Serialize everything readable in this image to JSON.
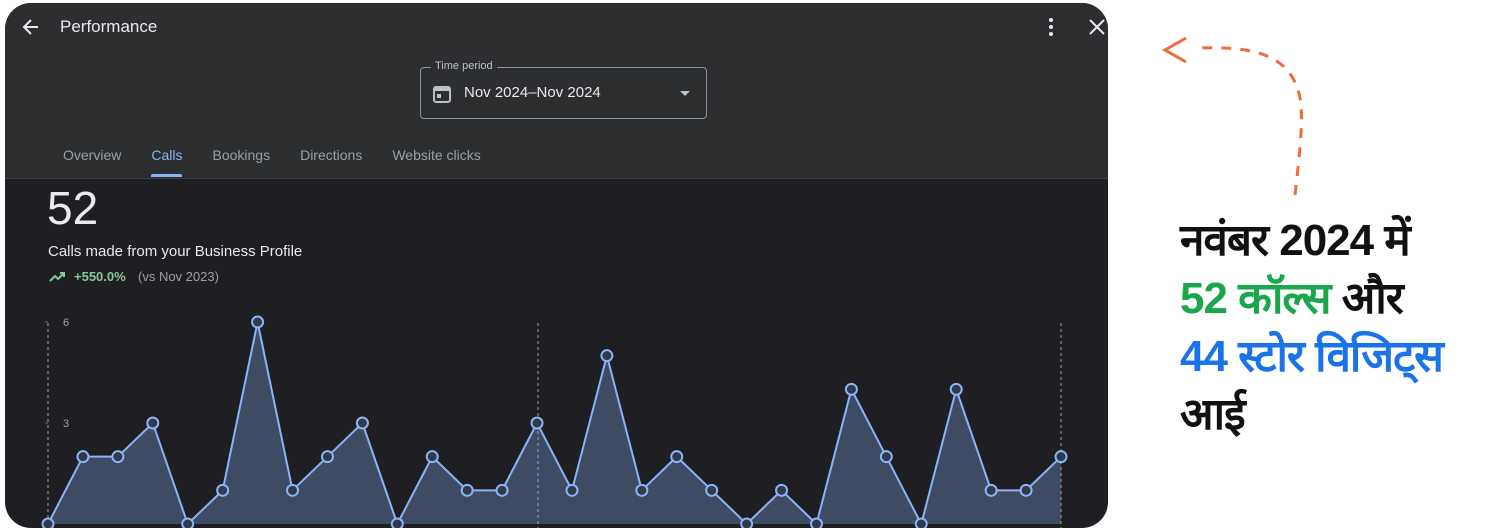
{
  "header": {
    "title": "Performance"
  },
  "time_period": {
    "label": "Time period",
    "value": "Nov 2024–Nov 2024"
  },
  "tabs": {
    "items": [
      "Overview",
      "Calls",
      "Bookings",
      "Directions",
      "Website clicks"
    ],
    "active": "Calls"
  },
  "summary": {
    "total": "52",
    "description": "Calls made from your Business Profile",
    "change": "+550.0%",
    "comparison": "(vs Nov 2023)"
  },
  "chart_data": {
    "type": "line",
    "values": [
      0,
      2,
      2,
      3,
      0,
      1,
      6,
      1,
      2,
      3,
      0,
      2,
      1,
      1,
      3,
      1,
      5,
      1,
      2,
      1,
      0,
      1,
      0,
      4,
      2,
      0,
      4,
      1,
      1,
      2
    ],
    "ylim": [
      0,
      6
    ],
    "yticks": [
      3,
      6
    ],
    "color": "#8ab4f8"
  },
  "caption": {
    "lines": [
      [
        {
          "text": "नवंबर 2024 में",
          "color": "#111111"
        }
      ],
      [
        {
          "text": "52 कॉल्स",
          "color": "#1aa64a"
        },
        {
          "text": " और",
          "color": "#111111"
        }
      ],
      [
        {
          "text": "44 स्टोर विजिट्स",
          "color": "#1a73e8"
        }
      ],
      [
        {
          "text": "आई",
          "color": "#111111"
        }
      ]
    ]
  }
}
